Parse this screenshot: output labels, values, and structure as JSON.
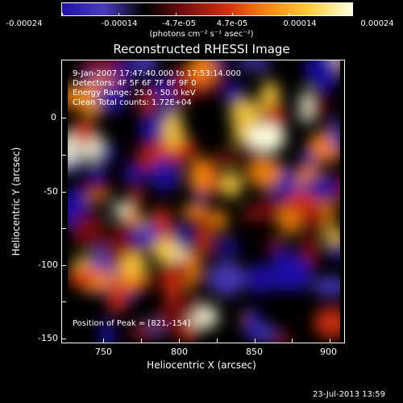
{
  "colorbar": {
    "tick_labels": [
      "-0.00024",
      "-0.00014",
      "-4.7e-05",
      "4.7e-05",
      "0.00014",
      "0.00024"
    ],
    "units": "(photons cm⁻² s⁻¹ asec⁻²)"
  },
  "info": {
    "time": "9-Jan-2007 17:47:40.000 to 17:53:14.000",
    "detectors": "Detectors: 4F 5F 6F 7F 8F 9F 0",
    "energy": "Energy Range: 25.0 - 50.0 keV",
    "method": "Clean    Total counts: 1.72E+04",
    "peak": "Position of Peak = [821,-154]"
  },
  "chart_data": {
    "type": "heatmap",
    "title": "Reconstructed RHESSI Image",
    "xlabel": "Heliocentric X (arcsec)",
    "ylabel": "Heliocentric Y (arcsec)",
    "xlim": [
      722,
      908
    ],
    "ylim": [
      -155,
      30
    ],
    "x_ticks": [
      "750",
      "800",
      "850",
      "900"
    ],
    "y_ticks": [
      "0",
      "-50",
      "-100",
      "-150"
    ],
    "colorscale": [
      "#1c12a8",
      "#4a3cbf",
      "#000000",
      "#7a1010",
      "#d43010",
      "#ff8a10",
      "#ffd040",
      "#ffffe0"
    ],
    "zrange": [
      -0.00024,
      0.00024
    ]
  },
  "footer": {
    "timestamp": "23-Jul-2013 13:59"
  }
}
